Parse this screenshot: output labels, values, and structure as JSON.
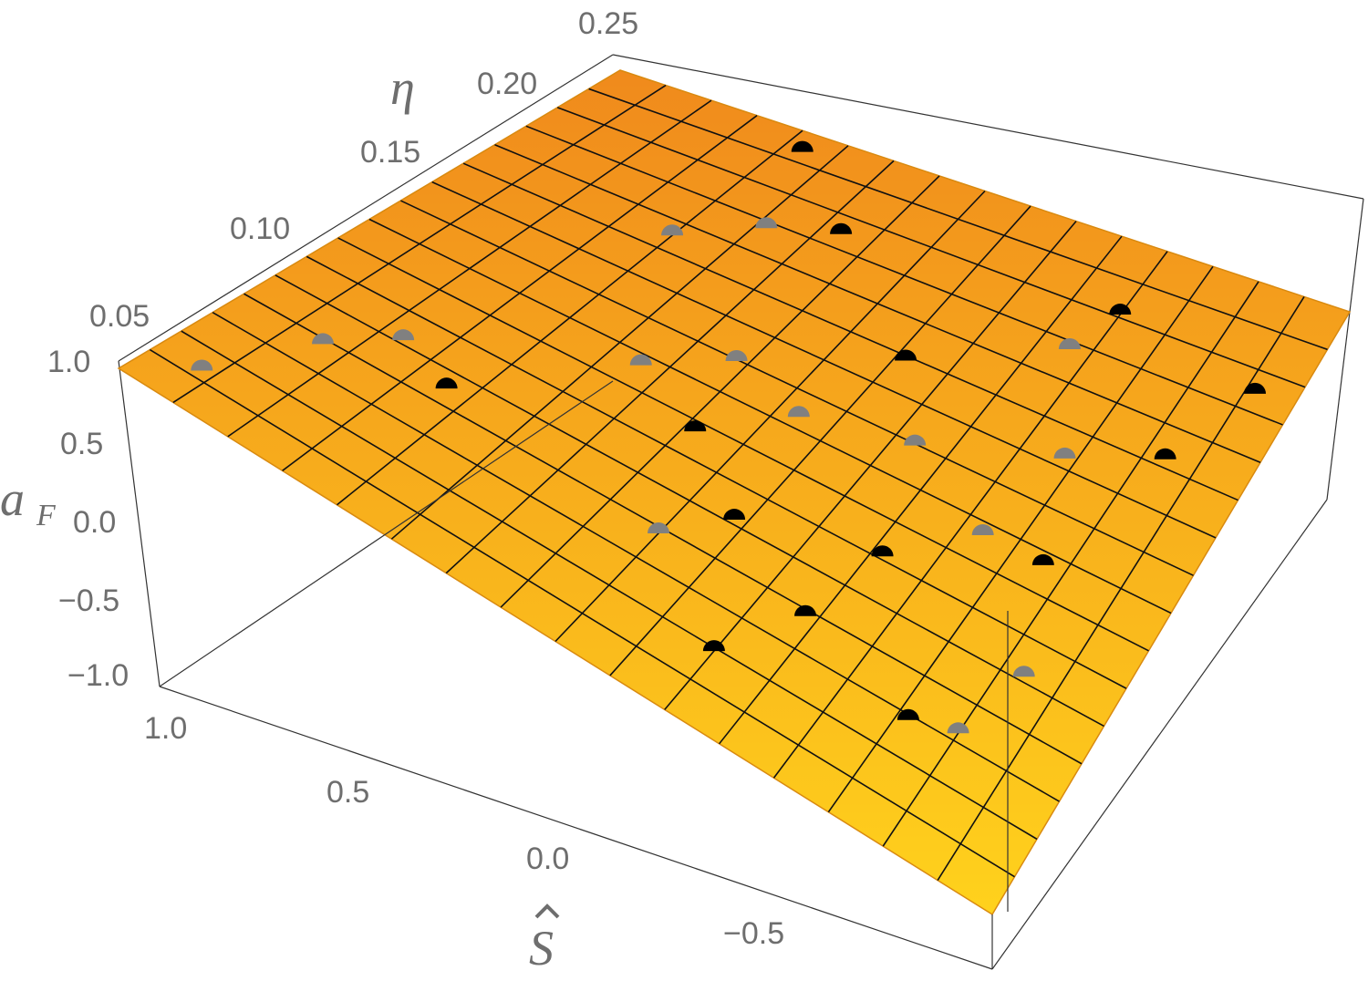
{
  "chart_data": {
    "type": "surface3d",
    "x_axis": {
      "symbol": "Ŝ",
      "label_text": "S",
      "range": [
        -1.0,
        1.0
      ],
      "ticks": [
        "1.0",
        "0.5",
        "0.0",
        "−0.5"
      ],
      "tick_values": [
        1.0,
        0.5,
        0.0,
        -0.5
      ]
    },
    "y_axis": {
      "symbol": "η",
      "range": [
        0.0,
        0.25
      ],
      "ticks": [
        "0.05",
        "0.10",
        "0.15",
        "0.20",
        "0.25"
      ],
      "tick_values": [
        0.05,
        0.1,
        0.15,
        0.2,
        0.25
      ]
    },
    "z_axis": {
      "symbol": "a",
      "subscript": "F",
      "range": [
        -1.0,
        1.0
      ],
      "ticks": [
        "1.0",
        "0.5",
        "0.0",
        "−0.5",
        "−1.0"
      ],
      "tick_values": [
        1.0,
        0.5,
        0.0,
        -0.5,
        -1.0
      ]
    },
    "surface": {
      "color_top": "#f08a1c",
      "color_bottom": "#ffd21c",
      "mesh_color": "#111111",
      "mesh_lines_s": 16,
      "mesh_lines_eta": 16,
      "approx_af_at_s_1": 0.95,
      "approx_af_at_s_minus_1": -0.75
    },
    "series": [
      {
        "marker": "half-disk",
        "color": "#000000",
        "points": [
          [
            0.55,
            0.07
          ],
          [
            0.1,
            0.105
          ],
          [
            -0.1,
            0.08
          ],
          [
            -0.35,
            0.06
          ],
          [
            -0.25,
            0.03
          ],
          [
            -0.4,
            0.095
          ],
          [
            -0.65,
            0.045
          ],
          [
            -0.7,
            0.12
          ],
          [
            -0.8,
            0.175
          ],
          [
            -0.15,
            0.17
          ],
          [
            0.2,
            0.21
          ],
          [
            0.45,
            0.24
          ],
          [
            -0.5,
            0.22
          ],
          [
            -0.9,
            0.21
          ]
        ]
      },
      {
        "marker": "half-disk",
        "color": "#808080",
        "points": [
          [
            0.7,
            0.08
          ],
          [
            0.8,
            0.06
          ],
          [
            0.9,
            0.02
          ],
          [
            0.3,
            0.12
          ],
          [
            0.15,
            0.14
          ],
          [
            -0.05,
            0.13
          ],
          [
            0.0,
            0.06
          ],
          [
            -0.3,
            0.14
          ],
          [
            -0.55,
            0.12
          ],
          [
            -0.75,
            0.05
          ],
          [
            -0.8,
            0.08
          ],
          [
            -0.6,
            0.16
          ],
          [
            -0.45,
            0.2
          ],
          [
            0.35,
            0.2
          ],
          [
            0.5,
            0.18
          ]
        ]
      }
    ]
  }
}
